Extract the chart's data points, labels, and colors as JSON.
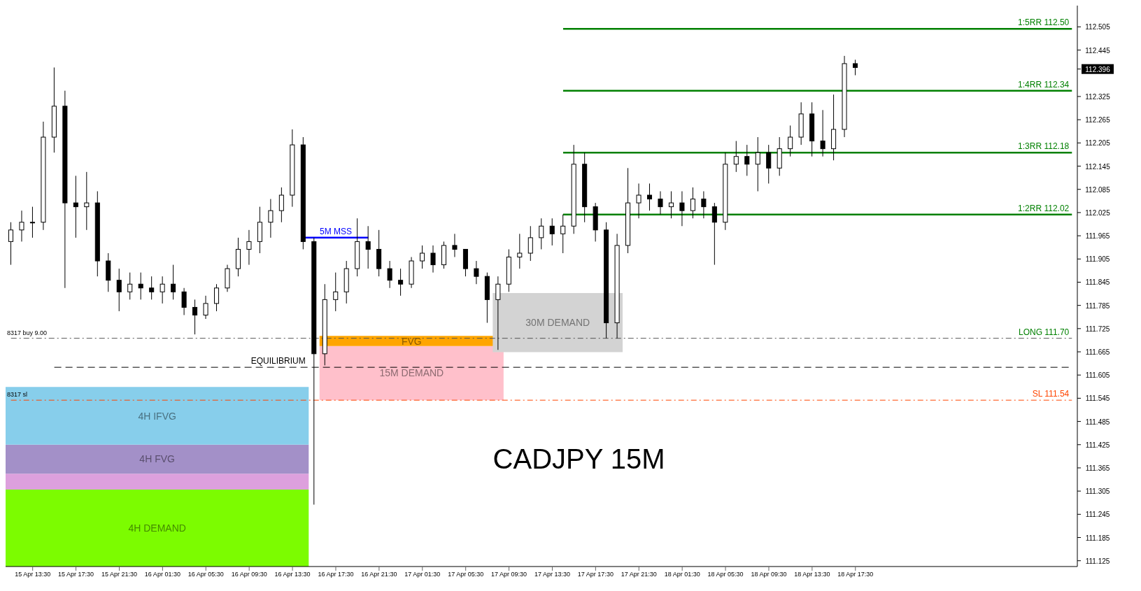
{
  "chart_data": {
    "type": "candlestick",
    "title": "CADJPY 15M",
    "categories": [
      null,
      null,
      "15 Apr 13:30",
      null,
      null,
      null,
      "15 Apr 17:30",
      null,
      null,
      null,
      "15 Apr 21:30",
      null,
      null,
      null,
      "16 Apr 01:30",
      null,
      null,
      null,
      "16 Apr 05:30",
      null,
      null,
      null,
      "16 Apr 09:30",
      null,
      null,
      null,
      "16 Apr 13:30",
      null,
      null,
      null,
      "16 Apr 17:30",
      null,
      null,
      null,
      "16 Apr 21:30",
      null,
      null,
      null,
      "17 Apr 01:30",
      null,
      null,
      null,
      "17 Apr 05:30",
      null,
      null,
      null,
      "17 Apr 09:30",
      null,
      null,
      null,
      "17 Apr 13:30",
      null,
      null,
      null,
      "17 Apr 17:30",
      null,
      null,
      null,
      "17 Apr 21:30",
      null,
      null,
      null,
      "18 Apr 01:30",
      null,
      null,
      null,
      "18 Apr 05:30",
      null,
      null,
      null,
      "18 Apr 09:30",
      null,
      null,
      null,
      "18 Apr 13:30",
      null,
      null,
      null,
      "18 Apr 17:30",
      null,
      null,
      null,
      null,
      null,
      null,
      null,
      null,
      null,
      null,
      null,
      null,
      null,
      null,
      null,
      null,
      null,
      null,
      null,
      null
    ],
    "ohlc": [
      [
        111.95,
        112.0,
        111.89,
        111.98
      ],
      [
        111.98,
        112.03,
        111.95,
        112.0
      ],
      [
        112.0,
        112.04,
        111.96,
        112.0
      ],
      [
        112.0,
        112.26,
        111.98,
        112.22
      ],
      [
        112.22,
        112.4,
        112.18,
        112.3
      ],
      [
        112.3,
        112.34,
        111.83,
        112.05
      ],
      [
        112.05,
        112.12,
        111.96,
        112.04
      ],
      [
        112.04,
        112.13,
        111.98,
        112.05
      ],
      [
        112.05,
        112.08,
        111.86,
        111.9
      ],
      [
        111.9,
        111.92,
        111.82,
        111.85
      ],
      [
        111.85,
        111.88,
        111.77,
        111.82
      ],
      [
        111.82,
        111.87,
        111.8,
        111.84
      ],
      [
        111.84,
        111.87,
        111.8,
        111.83
      ],
      [
        111.83,
        111.86,
        111.8,
        111.82
      ],
      [
        111.82,
        111.86,
        111.79,
        111.84
      ],
      [
        111.84,
        111.89,
        111.8,
        111.82
      ],
      [
        111.82,
        111.83,
        111.76,
        111.78
      ],
      [
        111.78,
        111.8,
        111.71,
        111.76
      ],
      [
        111.76,
        111.81,
        111.75,
        111.79
      ],
      [
        111.79,
        111.84,
        111.77,
        111.83
      ],
      [
        111.83,
        111.89,
        111.82,
        111.88
      ],
      [
        111.88,
        111.96,
        111.86,
        111.93
      ],
      [
        111.93,
        111.98,
        111.89,
        111.95
      ],
      [
        111.95,
        112.04,
        111.92,
        112.0
      ],
      [
        112.0,
        112.06,
        111.96,
        112.03
      ],
      [
        112.03,
        112.09,
        112.0,
        112.07
      ],
      [
        112.07,
        112.24,
        112.04,
        112.2
      ],
      [
        112.2,
        112.22,
        111.93,
        111.95
      ],
      [
        111.95,
        111.96,
        111.27,
        111.66
      ],
      [
        111.66,
        111.84,
        111.63,
        111.8
      ],
      [
        111.8,
        111.87,
        111.77,
        111.82
      ],
      [
        111.82,
        111.9,
        111.79,
        111.88
      ],
      [
        111.88,
        112.01,
        111.86,
        111.95
      ],
      [
        111.95,
        111.99,
        111.88,
        111.93
      ],
      [
        111.93,
        111.98,
        111.86,
        111.88
      ],
      [
        111.88,
        111.9,
        111.83,
        111.85
      ],
      [
        111.85,
        111.88,
        111.81,
        111.84
      ],
      [
        111.84,
        111.91,
        111.83,
        111.9
      ],
      [
        111.9,
        111.94,
        111.88,
        111.92
      ],
      [
        111.92,
        111.94,
        111.87,
        111.89
      ],
      [
        111.89,
        111.95,
        111.88,
        111.94
      ],
      [
        111.94,
        111.97,
        111.91,
        111.93
      ],
      [
        111.93,
        111.93,
        111.86,
        111.88
      ],
      [
        111.88,
        111.9,
        111.84,
        111.86
      ],
      [
        111.86,
        111.87,
        111.74,
        111.8
      ],
      [
        111.8,
        111.86,
        111.67,
        111.84
      ],
      [
        111.84,
        111.93,
        111.82,
        111.91
      ],
      [
        111.91,
        111.97,
        111.88,
        111.92
      ],
      [
        111.92,
        111.99,
        111.9,
        111.96
      ],
      [
        111.96,
        112.01,
        111.93,
        111.99
      ],
      [
        111.99,
        112.01,
        111.94,
        111.97
      ],
      [
        111.97,
        112.02,
        111.92,
        111.99
      ],
      [
        111.99,
        112.2,
        111.97,
        112.15
      ],
      [
        112.15,
        112.18,
        112.0,
        112.04
      ],
      [
        112.04,
        112.05,
        111.95,
        111.98
      ],
      [
        111.98,
        112.0,
        111.7,
        111.74
      ],
      [
        111.74,
        111.97,
        111.7,
        111.94
      ],
      [
        111.94,
        112.14,
        111.92,
        112.05
      ],
      [
        112.05,
        112.1,
        112.01,
        112.07
      ],
      [
        112.07,
        112.1,
        112.03,
        112.06
      ],
      [
        112.06,
        112.08,
        112.02,
        112.04
      ],
      [
        112.04,
        112.08,
        112.01,
        112.05
      ],
      [
        112.05,
        112.08,
        111.99,
        112.03
      ],
      [
        112.03,
        112.09,
        112.01,
        112.06
      ],
      [
        112.06,
        112.08,
        112.01,
        112.04
      ],
      [
        112.04,
        112.05,
        111.89,
        112.0
      ],
      [
        112.0,
        112.18,
        111.98,
        112.15
      ],
      [
        112.15,
        112.21,
        112.13,
        112.17
      ],
      [
        112.17,
        112.2,
        112.12,
        112.15
      ],
      [
        112.15,
        112.22,
        112.08,
        112.18
      ],
      [
        112.18,
        112.2,
        112.1,
        112.14
      ],
      [
        112.14,
        112.22,
        112.12,
        112.19
      ],
      [
        112.19,
        112.25,
        112.17,
        112.22
      ],
      [
        112.22,
        112.31,
        112.2,
        112.28
      ],
      [
        112.28,
        112.31,
        112.17,
        112.21
      ],
      [
        112.21,
        112.29,
        112.17,
        112.19
      ],
      [
        112.19,
        112.33,
        112.16,
        112.24
      ],
      [
        112.24,
        112.43,
        112.22,
        112.41
      ],
      [
        112.41,
        112.42,
        112.38,
        112.4
      ],
      null,
      null,
      null,
      null,
      null,
      null,
      null,
      null,
      null,
      null,
      null,
      null,
      null,
      null,
      null,
      null,
      null,
      null,
      null,
      null
    ],
    "ylim": [
      111.11,
      112.56
    ],
    "yticks": [
      111.125,
      111.185,
      111.245,
      111.305,
      111.365,
      111.425,
      111.485,
      111.545,
      111.605,
      111.665,
      111.725,
      111.785,
      111.845,
      111.905,
      111.965,
      112.025,
      112.085,
      112.145,
      112.205,
      112.265,
      112.325,
      {
        "value": 112.396,
        "label": "112.396"
      },
      112.445,
      112.505
    ],
    "bands": [
      {
        "axis": "y",
        "from": 111.11,
        "to": 111.309,
        "label": "4H DEMAND",
        "color": "#7cfc00"
      },
      {
        "axis": "y",
        "from": 111.309,
        "to": 111.35,
        "label": null,
        "color": "#dda0dd"
      },
      {
        "axis": "y",
        "from": 111.35,
        "to": 111.425,
        "label": "4H FVG",
        "color": "#a390c8"
      },
      {
        "axis": "y",
        "from": 111.425,
        "to": 111.574,
        "label": "4H IFVG",
        "color": "#87ceeb"
      },
      {
        "axis": "y",
        "from": 111.54,
        "to": 111.68,
        "label": "15M DEMAND",
        "color": "#ffc0cb"
      },
      {
        "axis": "y",
        "from": 111.68,
        "to": 111.706,
        "label": "FVG",
        "color": "#ffa500"
      },
      {
        "axis": "y",
        "from": 111.664,
        "to": 111.817,
        "label": "30M DEMAND",
        "color": "#d3d3d3"
      }
    ],
    "ref_lines": [
      {
        "axis": "y",
        "value": 112.5,
        "label": "1:5RR 112.50",
        "color": "#008000",
        "line_style": "solid"
      },
      {
        "axis": "y",
        "value": 112.34,
        "label": "1:4RR 112.34",
        "color": "#008000",
        "line_style": "solid"
      },
      {
        "axis": "y",
        "value": 112.18,
        "label": "1:3RR 112.18",
        "color": "#008000",
        "line_style": "solid"
      },
      {
        "axis": "y",
        "value": 112.02,
        "label": "1:2RR 112.02",
        "color": "#008000",
        "line_style": "solid"
      },
      {
        "axis": "y",
        "value": 111.96,
        "label": "5M MSS",
        "color": "#0000ff",
        "line_style": "solid"
      },
      {
        "axis": "y",
        "value": 111.7,
        "label": "LONG 111.70",
        "color": "#555555",
        "line_style": "dashdot"
      },
      {
        "axis": "y",
        "value": 111.625,
        "label": "EQUILIBRIUM",
        "color": "#000000",
        "line_style": "dashed"
      },
      {
        "axis": "y",
        "value": 111.54,
        "label": "SL 111.54",
        "color": "#ff4500",
        "line_style": "dashdot"
      }
    ],
    "annotations": [
      {
        "text": "8317 buy 9.00",
        "y": 111.7
      },
      {
        "text": "8317 sl",
        "y": 111.54
      }
    ]
  }
}
